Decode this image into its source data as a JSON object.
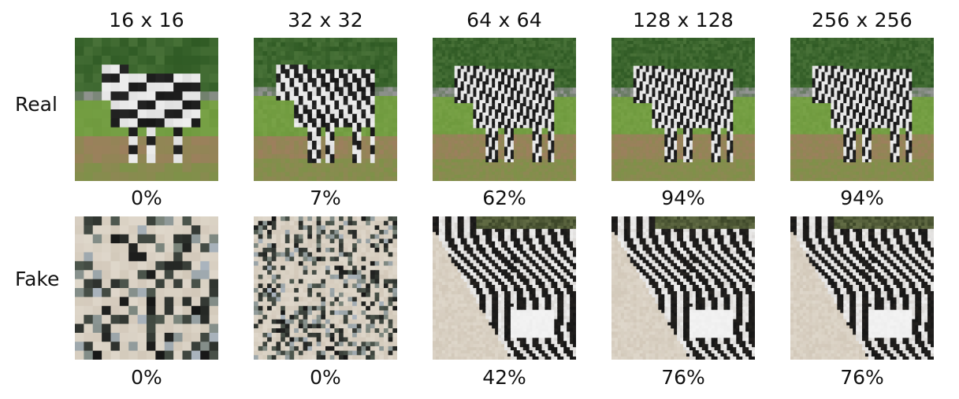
{
  "columns": [
    "16 x 16",
    "32 x 32",
    "64 x 64",
    "128 x 128",
    "256 x 256"
  ],
  "rows": [
    {
      "label": "Real",
      "image_description": "photo of two zebras standing on grass and dirt in front of a fence",
      "percentages": [
        "0%",
        "7%",
        "62%",
        "94%",
        "94%"
      ]
    },
    {
      "label": "Fake",
      "image_description": "generated zebra-stripe texture",
      "percentages": [
        "0%",
        "0%",
        "42%",
        "76%",
        "76%"
      ]
    }
  ],
  "colors": {
    "background": "#ffffff",
    "text": "#111111",
    "grass": "#6f9a3e",
    "trees": "#2f5a24",
    "dirt": "#a27c61",
    "stripe_dark": "#161616",
    "stripe_light": "#eeeeee"
  }
}
